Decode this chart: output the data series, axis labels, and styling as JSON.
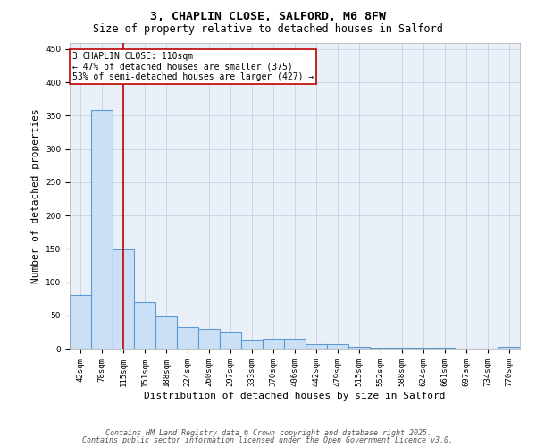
{
  "title1": "3, CHAPLIN CLOSE, SALFORD, M6 8FW",
  "title2": "Size of property relative to detached houses in Salford",
  "xlabel": "Distribution of detached houses by size in Salford",
  "ylabel": "Number of detached properties",
  "categories": [
    "42sqm",
    "78sqm",
    "115sqm",
    "151sqm",
    "188sqm",
    "224sqm",
    "260sqm",
    "297sqm",
    "333sqm",
    "370sqm",
    "406sqm",
    "442sqm",
    "479sqm",
    "515sqm",
    "552sqm",
    "588sqm",
    "624sqm",
    "661sqm",
    "697sqm",
    "734sqm",
    "770sqm"
  ],
  "values": [
    80,
    358,
    149,
    70,
    48,
    32,
    30,
    25,
    13,
    15,
    15,
    7,
    7,
    3,
    2,
    1,
    1,
    1,
    0,
    0,
    3
  ],
  "bar_color": "#cce0f5",
  "bar_edge_color": "#5b9bd5",
  "bar_edge_width": 0.8,
  "vline_index": 2,
  "vline_color": "#c00000",
  "ylim": [
    0,
    460
  ],
  "yticks": [
    0,
    50,
    100,
    150,
    200,
    250,
    300,
    350,
    400,
    450
  ],
  "annotation_title": "3 CHAPLIN CLOSE: 110sqm",
  "annotation_line2": "← 47% of detached houses are smaller (375)",
  "annotation_line3": "53% of semi-detached houses are larger (427) →",
  "annotation_box_color": "#ffffff",
  "annotation_border_color": "#c00000",
  "grid_color": "#c8d4e8",
  "bg_color": "#eaf0f8",
  "footer1": "Contains HM Land Registry data © Crown copyright and database right 2025.",
  "footer2": "Contains public sector information licensed under the Open Government Licence v3.0.",
  "title_fontsize": 9.5,
  "subtitle_fontsize": 8.5,
  "axis_label_fontsize": 8,
  "tick_fontsize": 6.5,
  "annotation_fontsize": 7,
  "footer_fontsize": 6
}
